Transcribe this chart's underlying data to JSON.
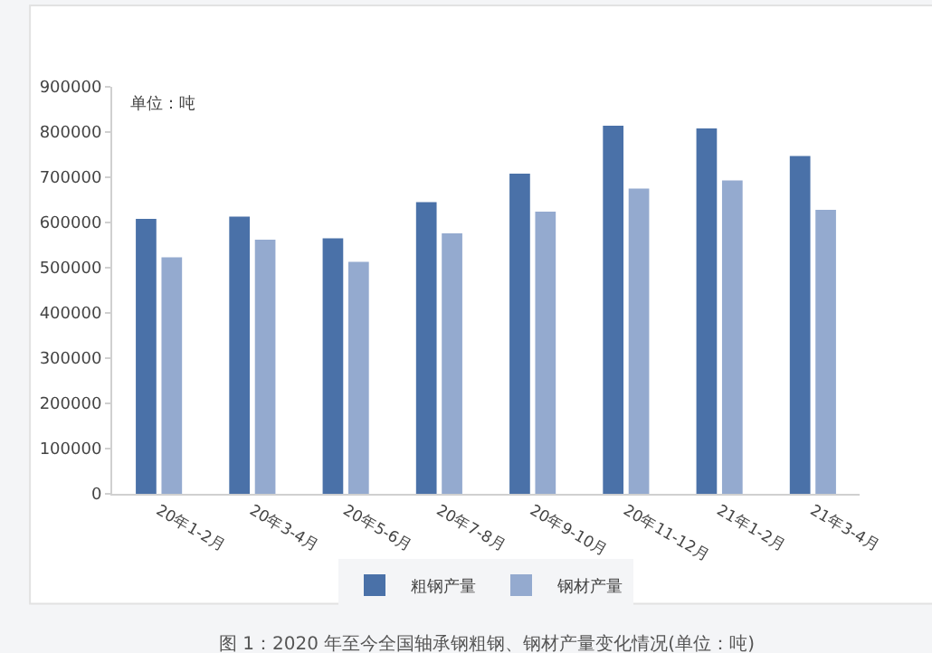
{
  "chart_data": {
    "type": "bar",
    "categories": [
      "20年1-2月",
      "20年3-4月",
      "20年5-6月",
      "20年7-8月",
      "20年9-10月",
      "20年11-12月",
      "21年1-2月",
      "21年3-4月"
    ],
    "series": [
      {
        "name": "粗钢产量",
        "color": "#4a71a8",
        "values": [
          608000,
          613000,
          565000,
          645000,
          708000,
          814000,
          808000,
          747000
        ]
      },
      {
        "name": "钢材产量",
        "color": "#94aacf",
        "values": [
          523000,
          562000,
          513000,
          576000,
          624000,
          675000,
          693000,
          628000
        ]
      }
    ],
    "ylim": [
      0,
      900000
    ],
    "yticks": [
      0,
      100000,
      200000,
      300000,
      400000,
      500000,
      600000,
      700000,
      800000,
      900000
    ],
    "grid": false,
    "legend": "bottom",
    "annotations": [
      "单位：吨",
      "图 1：2020 年至今全国轴承钢粗钢、钢材产量变化情况(单位：吨)"
    ]
  }
}
